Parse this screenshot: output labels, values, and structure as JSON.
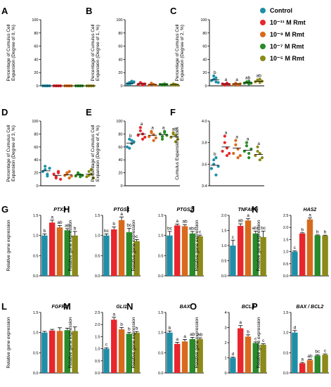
{
  "legend": [
    {
      "label": "Control",
      "color": "#1f8fa8"
    },
    {
      "label": "10⁻¹¹ M Rmt",
      "color": "#e8262c"
    },
    {
      "label": "10⁻⁹ M Rmt",
      "color": "#d86a1c"
    },
    {
      "label": "10⁻⁷ M Rmt",
      "color": "#2a8a2a"
    },
    {
      "label": "10⁻⁵ M Rmt",
      "color": "#8b8a1a"
    }
  ],
  "chart_data": [
    {
      "panel": "A",
      "type": "scatter",
      "title": "",
      "ylabel": "Percentage of Cumulus Cell Expansion (Degree of 0, %)",
      "ylim": [
        0,
        100
      ],
      "yticks": [
        "0",
        "20",
        "40",
        "60",
        "80",
        "100"
      ],
      "series": [
        [
          0,
          0,
          0,
          0,
          0,
          0
        ],
        [
          0,
          0,
          0,
          0,
          0,
          0
        ],
        [
          0,
          0,
          0,
          0,
          0,
          0
        ],
        [
          0,
          0,
          0,
          0,
          0,
          0
        ],
        [
          0,
          0,
          0,
          0,
          0,
          0
        ]
      ],
      "means": [
        0,
        0,
        0,
        0,
        0
      ],
      "sig": [
        "",
        "",
        "",
        "",
        ""
      ]
    },
    {
      "panel": "B",
      "type": "scatter",
      "title": "",
      "ylabel": "Percentage of Cumulus Cell Expansion (Degree of 1, %)",
      "ylim": [
        0,
        100
      ],
      "yticks": [
        "0",
        "20",
        "40",
        "60",
        "80",
        "100"
      ],
      "series": [
        [
          3,
          5,
          7,
          2,
          4,
          6
        ],
        [
          2,
          4,
          3,
          5,
          1,
          3
        ],
        [
          1,
          3,
          2,
          4,
          2,
          1
        ],
        [
          2,
          1,
          3,
          2,
          1,
          2
        ],
        [
          1,
          2,
          1,
          3,
          2,
          1
        ]
      ],
      "means": [
        4,
        3,
        2,
        2,
        2
      ],
      "sig": [
        "",
        "",
        "",
        "",
        ""
      ]
    },
    {
      "panel": "C",
      "type": "scatter",
      "title": "",
      "ylabel": "Percentage of Cumulus Cell Expansion (Degree of 2, %)",
      "ylim": [
        0,
        100
      ],
      "yticks": [
        "0",
        "20",
        "40",
        "60",
        "80",
        "100"
      ],
      "series": [
        [
          8,
          15,
          6,
          10,
          12,
          5
        ],
        [
          3,
          2,
          4,
          1,
          3,
          2
        ],
        [
          2,
          3,
          1,
          4,
          2,
          3
        ],
        [
          4,
          6,
          3,
          5,
          7,
          4
        ],
        [
          6,
          9,
          5,
          8,
          10,
          7
        ]
      ],
      "means": [
        9,
        3,
        3,
        5,
        7
      ],
      "sig": [
        "b",
        "a",
        "a",
        "ab",
        "ab"
      ]
    },
    {
      "panel": "D",
      "type": "scatter",
      "title": "",
      "ylabel": "Percentage of Cumulus Cell Expansion (Degree of 3, %)",
      "ylim": [
        0,
        100
      ],
      "yticks": [
        "0",
        "20",
        "40",
        "60",
        "80",
        "100"
      ],
      "series": [
        [
          22,
          30,
          18,
          25,
          15,
          27
        ],
        [
          18,
          12,
          22,
          14,
          20,
          10
        ],
        [
          16,
          20,
          12,
          18,
          22,
          15
        ],
        [
          15,
          18,
          14,
          20,
          17,
          16
        ],
        [
          14,
          22,
          18,
          16,
          25,
          12
        ]
      ],
      "means": [
        23,
        16,
        17,
        17,
        18
      ],
      "sig": [
        "",
        "",
        "",
        "",
        ""
      ]
    },
    {
      "panel": "E",
      "type": "scatter",
      "title": "",
      "ylabel": "Percentage of Cumulus Cell Expansion (Degree of 4, %)",
      "ylim": [
        0,
        100
      ],
      "yticks": [
        "0",
        "20",
        "40",
        "60",
        "80",
        "100"
      ],
      "series": [
        [
          60,
          72,
          65,
          58,
          70,
          68
        ],
        [
          78,
          85,
          72,
          90,
          80,
          75
        ],
        [
          76,
          82,
          70,
          84,
          79,
          74
        ],
        [
          80,
          76,
          84,
          72,
          82,
          78
        ],
        [
          75,
          82,
          68,
          80,
          78,
          72
        ]
      ],
      "means": [
        66,
        80,
        78,
        79,
        76
      ],
      "sig": [
        "b",
        "a",
        "a",
        "a",
        "ab"
      ]
    },
    {
      "panel": "F",
      "type": "scatter",
      "title": "",
      "ylabel": "Cumulus Expansion Index",
      "ylim": [
        3.4,
        4.0
      ],
      "yticks": [
        "3.4",
        "3.6",
        "3.8",
        "4.0"
      ],
      "series": [
        [
          3.56,
          3.64,
          3.5,
          3.6,
          3.66,
          3.58
        ],
        [
          3.72,
          3.8,
          3.68,
          3.86,
          3.75,
          3.7
        ],
        [
          3.7,
          3.78,
          3.66,
          3.82,
          3.74,
          3.68
        ],
        [
          3.72,
          3.77,
          3.66,
          3.8,
          3.7,
          3.74
        ],
        [
          3.68,
          3.76,
          3.64,
          3.72,
          3.7,
          3.66
        ]
      ],
      "means": [
        3.59,
        3.76,
        3.75,
        3.73,
        3.69
      ],
      "sig": [
        "b",
        "a",
        "a",
        "a",
        "a"
      ]
    },
    {
      "panel": "G",
      "type": "bar",
      "title": "PTX3",
      "ylabel": "Relative gene expression",
      "ylim": [
        0,
        1.5
      ],
      "yticks": [
        "0.0",
        "0.5",
        "1.0",
        "1.5"
      ],
      "values": [
        1.0,
        1.32,
        1.2,
        1.13,
        1.0
      ],
      "errors": [
        0.04,
        0.06,
        0.05,
        0.04,
        0.1
      ],
      "sig": [
        "b",
        "a",
        "ab",
        "ab",
        "b"
      ]
    },
    {
      "panel": "H",
      "type": "bar",
      "title": "PTGS1",
      "ylabel": "Relative gene expression",
      "ylim": [
        0,
        1.5
      ],
      "yticks": [
        "0.0",
        "0.5",
        "1.0",
        "1.5"
      ],
      "values": [
        1.0,
        1.15,
        1.38,
        1.08,
        0.86
      ],
      "errors": [
        0.04,
        0.06,
        0.08,
        0.1,
        0.04
      ],
      "sig": [
        "bc",
        "b",
        "a",
        "bc",
        "c"
      ]
    },
    {
      "panel": "I",
      "type": "bar",
      "title": "PTGS2",
      "ylabel": "Relative gene expression",
      "ylim": [
        0,
        1.5
      ],
      "yticks": [
        "0.0",
        "0.5",
        "1.0",
        "1.5"
      ],
      "values": [
        1.0,
        1.25,
        1.23,
        1.05,
        0.98
      ],
      "errors": [
        0.1,
        0.03,
        0.04,
        0.05,
        0.03
      ],
      "sig": [
        "bc",
        "a",
        "ab",
        "abc",
        "c"
      ]
    },
    {
      "panel": "J",
      "type": "bar",
      "title": "TNFAIP6",
      "ylabel": "Relative gene expression",
      "ylim": [
        0,
        2.0
      ],
      "yticks": [
        "0.0",
        "0.5",
        "1.0",
        "1.5",
        "2.0"
      ],
      "values": [
        1.0,
        1.65,
        1.83,
        1.4,
        1.28
      ],
      "errors": [
        0.18,
        0.07,
        0.06,
        0.08,
        0.2
      ],
      "sig": [
        "c",
        "ab",
        "a",
        "abc",
        "bc"
      ]
    },
    {
      "panel": "K",
      "type": "bar",
      "title": "HAS2",
      "ylabel": "Relative gene expression",
      "ylim": [
        0,
        2.5
      ],
      "yticks": [
        "0.0",
        "0.5",
        "1.0",
        "1.5",
        "2.0",
        "2.5"
      ],
      "values": [
        1.0,
        1.75,
        2.33,
        1.67,
        1.66
      ],
      "errors": [
        0.03,
        0.03,
        0.06,
        0.02,
        0.02
      ],
      "sig": [
        "c",
        "b",
        "a",
        "b",
        "b"
      ]
    },
    {
      "panel": "L",
      "type": "bar",
      "title": "FGFR2",
      "ylabel": "Relative gene expression",
      "ylim": [
        0,
        1.5
      ],
      "yticks": [
        "0.0",
        "0.5",
        "1.0",
        "1.5"
      ],
      "values": [
        1.0,
        1.05,
        1.04,
        1.06,
        1.04
      ],
      "errors": [
        0.03,
        0.03,
        0.08,
        0.05,
        0.1
      ],
      "sig": [
        "",
        "",
        "",
        "",
        ""
      ]
    },
    {
      "panel": "M",
      "type": "bar",
      "title": "GLI1",
      "ylabel": "Relative gene expression",
      "ylim": [
        0,
        2.5
      ],
      "yticks": [
        "0.0",
        "0.5",
        "1.0",
        "1.5",
        "2.0",
        "2.5"
      ],
      "values": [
        1.0,
        2.2,
        1.8,
        1.62,
        1.66
      ],
      "errors": [
        0.04,
        0.1,
        0.08,
        0.06,
        0.05
      ],
      "sig": [
        "c",
        "a",
        "b",
        "b",
        "b"
      ]
    },
    {
      "panel": "N",
      "type": "bar",
      "title": "BAX",
      "ylabel": "Relative gene expression",
      "ylim": [
        0,
        1.5
      ],
      "yticks": [
        "0.0",
        "0.5",
        "1.0",
        "1.5"
      ],
      "values": [
        1.0,
        0.72,
        0.78,
        0.84,
        0.84
      ],
      "errors": [
        0.04,
        0.04,
        0.05,
        0.04,
        0.03
      ],
      "sig": [
        "b",
        "a",
        "a",
        "ab",
        "ab"
      ]
    },
    {
      "panel": "O",
      "type": "bar",
      "title": "BCL2",
      "ylabel": "Relative gene expression",
      "ylim": [
        0,
        4
      ],
      "yticks": [
        "0",
        "1",
        "2",
        "3",
        "4"
      ],
      "values": [
        1.0,
        2.95,
        2.4,
        1.98,
        1.87
      ],
      "errors": [
        0.05,
        0.18,
        0.12,
        0.07,
        0.06
      ],
      "sig": [
        "d",
        "a",
        "b",
        "c",
        "c"
      ]
    },
    {
      "panel": "P",
      "type": "bar",
      "title": "BAX / BCL2",
      "ylabel": "Relative gene expression",
      "ylim": [
        0,
        1.5
      ],
      "yticks": [
        "0.0",
        "0.5",
        "1.0",
        "1.5"
      ],
      "values": [
        1.0,
        0.24,
        0.32,
        0.43,
        0.45
      ],
      "errors": [
        0.05,
        0.02,
        0.02,
        0.02,
        0.02
      ],
      "sig": [
        "d",
        "a",
        "ab",
        "bc",
        "c"
      ]
    }
  ]
}
